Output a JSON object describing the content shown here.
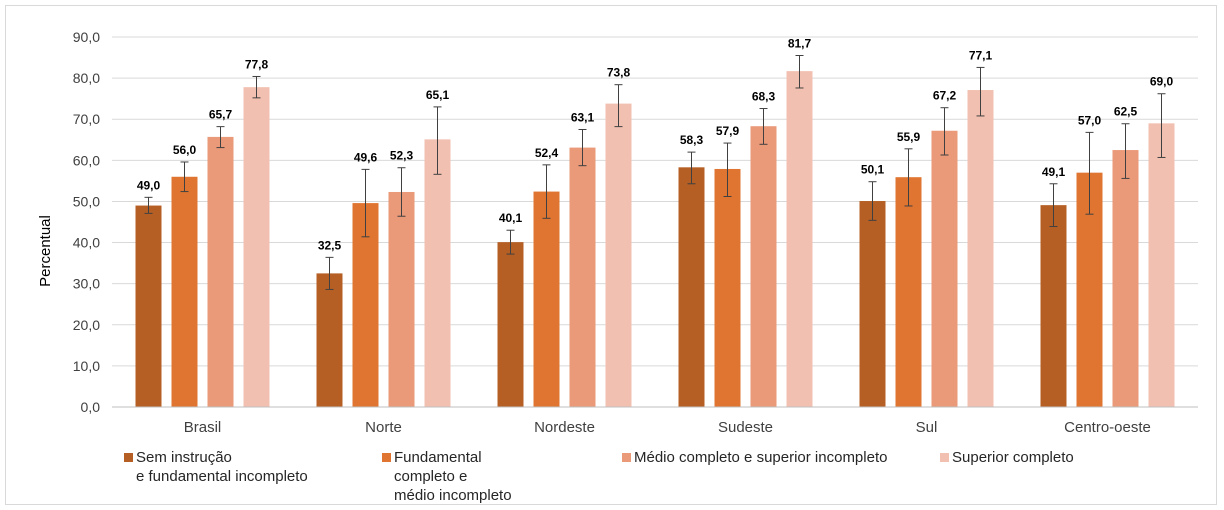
{
  "chart_data": {
    "type": "bar",
    "ylabel": "Percentual",
    "ylim": [
      0,
      90
    ],
    "yticks": [
      "0,0",
      "10,0",
      "20,0",
      "30,0",
      "40,0",
      "50,0",
      "60,0",
      "70,0",
      "80,0",
      "90,0"
    ],
    "grid": true,
    "legend_position": "bottom",
    "categories": [
      "Brasil",
      "Norte",
      "Nordeste",
      "Sudeste",
      "Sul",
      "Centro-oeste"
    ],
    "series": [
      {
        "name": "Sem instrução\ne fundamental incompleto",
        "color": "#b55f24",
        "values": [
          49.0,
          32.5,
          40.1,
          58.3,
          50.1,
          49.1
        ],
        "labels": [
          "49,0",
          "32,5",
          "40,1",
          "58,3",
          "50,1",
          "49,1"
        ],
        "error_low": [
          47.1,
          28.6,
          37.2,
          54.3,
          45.4,
          43.9
        ],
        "error_high": [
          51.0,
          36.4,
          43.0,
          62.0,
          54.8,
          54.3
        ]
      },
      {
        "name": "Fundamental\ncompleto e\nmédio incompleto",
        "color": "#df7530",
        "values": [
          56.0,
          49.6,
          52.4,
          57.9,
          55.9,
          57.0
        ],
        "labels": [
          "56,0",
          "49,6",
          "52,4",
          "57,9",
          "55,9",
          "57,0"
        ],
        "error_low": [
          52.4,
          41.4,
          45.9,
          51.2,
          48.9,
          46.9
        ],
        "error_high": [
          59.6,
          57.8,
          58.9,
          64.2,
          62.8,
          66.8
        ]
      },
      {
        "name": "Médio completo e superior incompleto",
        "color": "#ea9979",
        "values": [
          65.7,
          52.3,
          63.1,
          68.3,
          67.2,
          62.5
        ],
        "labels": [
          "65,7",
          "52,3",
          "63,1",
          "68,3",
          "67,2",
          "62,5"
        ],
        "error_low": [
          63.1,
          46.4,
          58.7,
          63.9,
          61.3,
          55.6
        ],
        "error_high": [
          68.2,
          58.2,
          67.5,
          72.6,
          72.8,
          68.9
        ]
      },
      {
        "name": "Superior completo",
        "color": "#f2c0b0",
        "values": [
          77.8,
          65.1,
          73.8,
          81.7,
          77.1,
          69.0
        ],
        "labels": [
          "77,8",
          "65,1",
          "73,8",
          "81,7",
          "77,1",
          "69,0"
        ],
        "error_low": [
          75.2,
          56.6,
          68.2,
          77.6,
          70.8,
          60.7
        ],
        "error_high": [
          80.4,
          73.0,
          78.4,
          85.5,
          82.6,
          76.2
        ]
      }
    ]
  }
}
